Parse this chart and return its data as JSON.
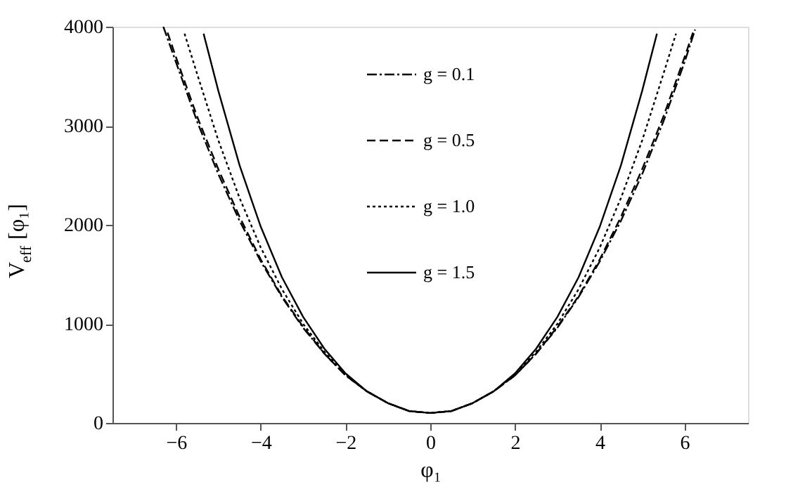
{
  "chart_data": {
    "type": "line",
    "xlabel": "φ₁",
    "ylabel": "V$_{eff}$[φ₁]",
    "xlim": [
      -7.5,
      7.5
    ],
    "ylim": [
      0,
      4000
    ],
    "xticks": [
      -6,
      -4,
      -2,
      0,
      2,
      4,
      6
    ],
    "yticks": [
      0,
      1000,
      2000,
      3000,
      4000
    ],
    "grid": false,
    "legend": "top",
    "marker": "none",
    "x": [
      -6.2,
      -6,
      -5.5,
      -5,
      -4.5,
      -4,
      -3.5,
      -3,
      -2.5,
      -2,
      -1.5,
      -1,
      -0.5,
      0,
      0.5,
      1,
      1.5,
      2,
      2.5,
      3,
      3.5,
      4,
      4.5,
      5,
      5.5,
      6,
      6.2
    ],
    "series": [
      {
        "name": "g = 0.1",
        "color": "#000000",
        "line_style": "dashdot",
        "x": [
          -6.3,
          -6,
          -5.5,
          -5,
          -4.5,
          -4,
          -3.5,
          -3,
          -2.5,
          -2,
          -1.5,
          -1,
          -0.5,
          0,
          0.5,
          1,
          1.5,
          2,
          2.5,
          3,
          3.5,
          4,
          4.5,
          5,
          5.5,
          6,
          6.25
        ],
        "values": [
          4000,
          3640,
          3040,
          2510,
          2040,
          1630,
          1270,
          960,
          700,
          480,
          320,
          200,
          120,
          100,
          120,
          200,
          320,
          480,
          700,
          960,
          1270,
          1630,
          2040,
          2510,
          3040,
          3640,
          3970
        ]
      },
      {
        "name": "g = 0.5",
        "color": "#000000",
        "line_style": "dashed",
        "values": [
          3940,
          3690,
          3090,
          2560,
          2080,
          1650,
          1280,
          970,
          700,
          480,
          320,
          200,
          120,
          100,
          120,
          200,
          320,
          480,
          700,
          970,
          1280,
          1650,
          2080,
          2560,
          3090,
          3690,
          3940
        ]
      },
      {
        "name": "g = 1.0",
        "color": "#000000",
        "line_style": "dotted",
        "x": [
          -5.8,
          -5.5,
          -5,
          -4.5,
          -4,
          -3.5,
          -3,
          -2.5,
          -2,
          -1.5,
          -1,
          -0.5,
          0,
          0.5,
          1,
          1.5,
          2,
          2.5,
          3,
          3.5,
          4,
          4.5,
          5,
          5.5,
          5.8
        ],
        "values": [
          3930,
          3520,
          2850,
          2270,
          1770,
          1350,
          1000,
          720,
          490,
          320,
          200,
          120,
          100,
          120,
          200,
          320,
          490,
          720,
          1000,
          1350,
          1770,
          2270,
          2850,
          3520,
          3930
        ]
      },
      {
        "name": "g = 1.5",
        "color": "#000000",
        "line_style": "solid",
        "x": [
          -5.35,
          -5,
          -4.5,
          -4,
          -3.5,
          -3,
          -2.5,
          -2,
          -1.5,
          -1,
          -0.5,
          0,
          0.5,
          1,
          1.5,
          2,
          2.5,
          3,
          3.5,
          4,
          4.5,
          5,
          5.35
        ],
        "values": [
          3930,
          3350,
          2600,
          1980,
          1470,
          1070,
          750,
          500,
          320,
          200,
          120,
          100,
          120,
          200,
          320,
          500,
          750,
          1070,
          1470,
          1980,
          2600,
          3350,
          3930
        ]
      }
    ]
  }
}
